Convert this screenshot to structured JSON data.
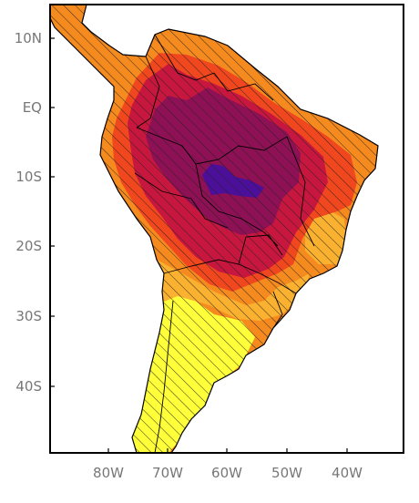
{
  "axes": {
    "lat_labels": [
      "10N",
      "EQ",
      "10S",
      "20S",
      "30S",
      "40S"
    ],
    "lon_labels": [
      "80W",
      "70W",
      "60W",
      "50W",
      "40W"
    ]
  },
  "colors": {
    "ocean": "#ffffff",
    "frame": "#000000",
    "orange": "#f58a1f",
    "yellow": "#ffff3a",
    "light_orange": "#fbb130",
    "red_orange": "#f1471e",
    "crimson": "#c8173f",
    "maroon": "#8e1155",
    "blue": "#4b0f9a",
    "hatch": "#222222"
  }
}
